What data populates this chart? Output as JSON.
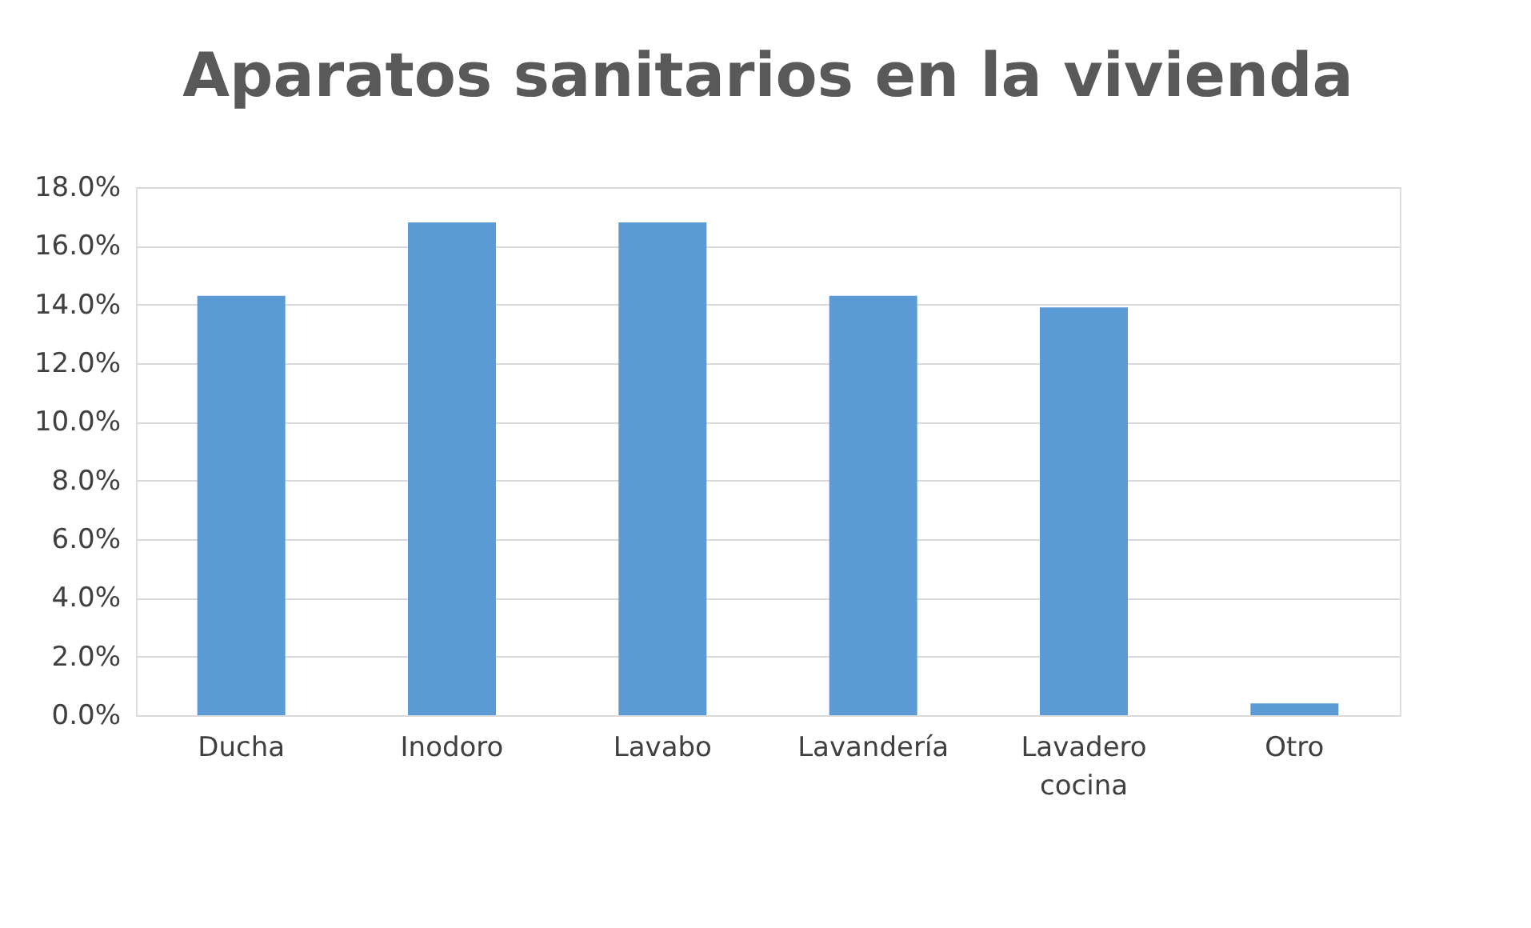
{
  "chart_data": {
    "type": "bar",
    "title": "Aparatos sanitarios en la vivienda",
    "categories": [
      "Ducha",
      "Inodoro",
      "Lavabo",
      "Lavandería",
      "Lavadero cocina",
      "Otro"
    ],
    "values": [
      14.3,
      16.8,
      16.8,
      14.3,
      13.9,
      0.4
    ],
    "color": "#5b9bd5",
    "ylim": [
      0,
      18
    ],
    "yticks": [
      {
        "value": 0,
        "label": "0.0%"
      },
      {
        "value": 2,
        "label": "2.0%"
      },
      {
        "value": 4,
        "label": "4.0%"
      },
      {
        "value": 6,
        "label": "6.0%"
      },
      {
        "value": 8,
        "label": "8.0%"
      },
      {
        "value": 10,
        "label": "10.0%"
      },
      {
        "value": 12,
        "label": "12.0%"
      },
      {
        "value": 14,
        "label": "14.0%"
      },
      {
        "value": 16,
        "label": "16.0%"
      },
      {
        "value": 18,
        "label": "18.0%"
      }
    ],
    "grid": "y"
  }
}
